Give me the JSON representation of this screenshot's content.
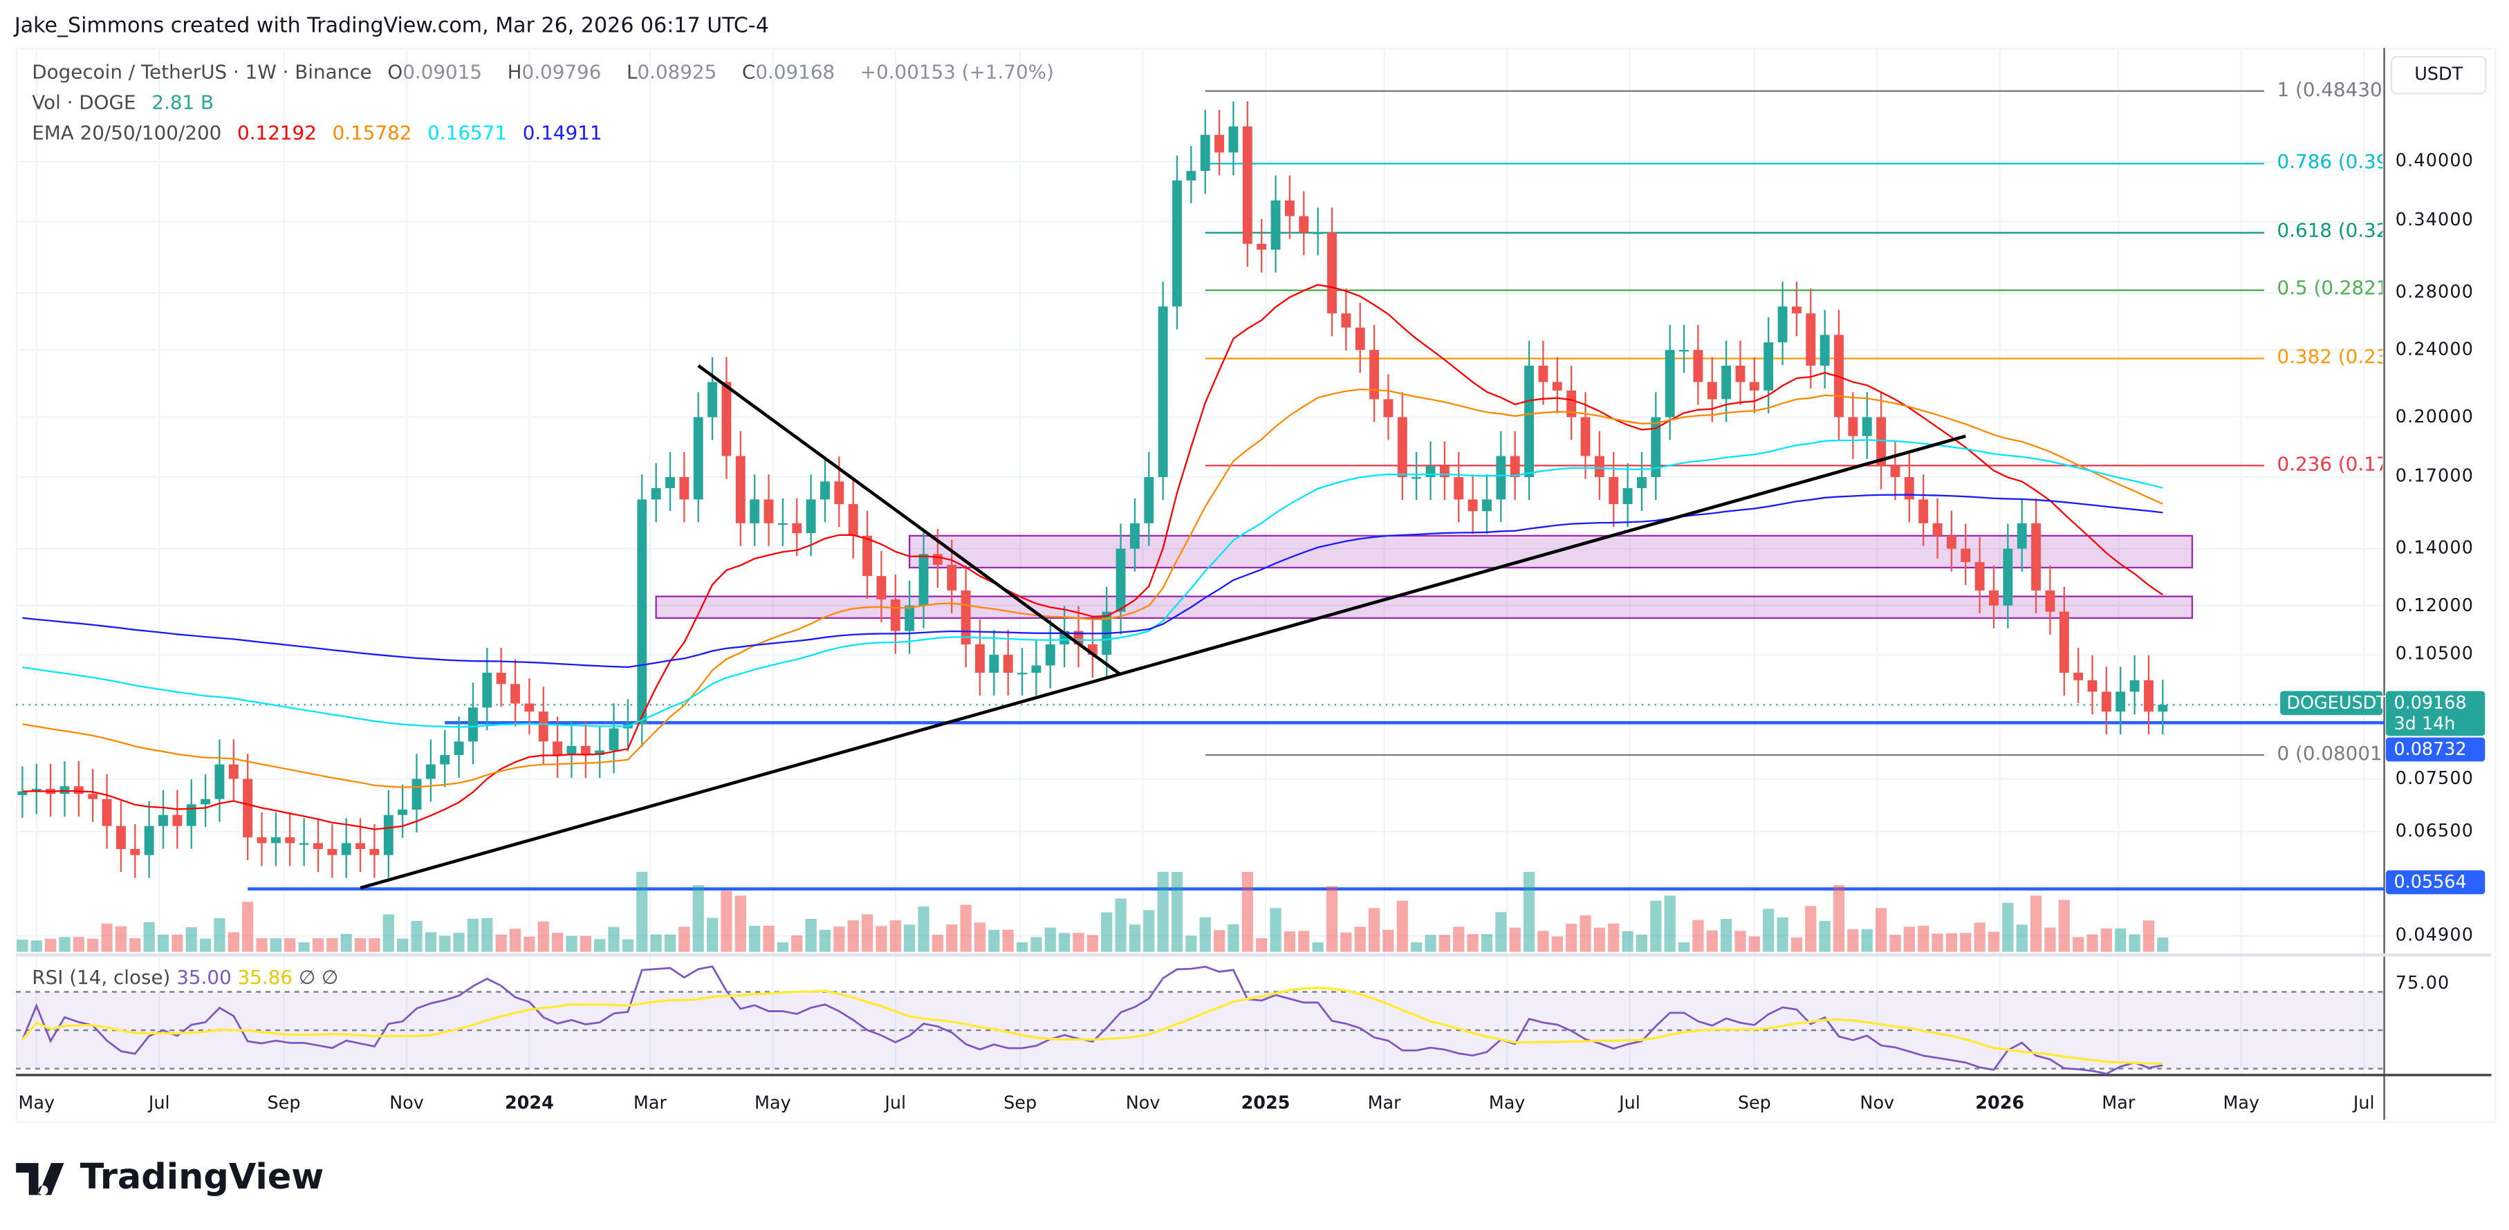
{
  "credit": "Jake_Simmons created with TradingView.com, Mar 26, 2026 06:17 UTC-4",
  "legend": {
    "symbol": "Dogecoin / TetherUS · 1W · Binance",
    "o_label": "O",
    "o": "0.09015",
    "h_label": "H",
    "h": "0.09796",
    "l_label": "L",
    "l": "0.08925",
    "c_label": "C",
    "c": "0.09168",
    "change": "+0.00153 (+1.70%)",
    "vol_label": "Vol · DOGE",
    "vol": "2.81 B",
    "ema_label": "EMA 20/50/100/200",
    "ema_values": [
      "0.12192",
      "0.15782",
      "0.16571",
      "0.14911"
    ],
    "rsi_label": "RSI (14, close)",
    "rsi": "35.00",
    "rsi_ma": "35.86",
    "rsi_n1": "∅",
    "rsi_n2": "∅"
  },
  "currency": "USDT",
  "colors": {
    "up": "#26a69a",
    "down": "#ef5350",
    "ema": [
      "#ff0000",
      "#ff8a00",
      "#00e5ff",
      "#1a1aff"
    ],
    "rsi": "#7e57c2",
    "rsi_ma": "#ffeb3b",
    "hline": "#2962ff",
    "zone": "#9c27b0"
  },
  "price_ticks": [
    "0.40000",
    "0.34000",
    "0.28000",
    "0.24000",
    "0.20000",
    "0.17000",
    "0.14000",
    "0.12000",
    "0.10500",
    "0.07500",
    "0.06500",
    "0.04900"
  ],
  "rsi_tick": "75.00",
  "tags": {
    "symbol": "DOGEUSDT",
    "last": "0.09168",
    "countdown": "3d 14h",
    "level1": "0.08732",
    "level2": "0.05564"
  },
  "time_labels": [
    {
      "t": "May",
      "d": "2023-05-01"
    },
    {
      "t": "Jul",
      "d": "2023-07-01"
    },
    {
      "t": "Sep",
      "d": "2023-09-01"
    },
    {
      "t": "Nov",
      "d": "2023-11-01"
    },
    {
      "t": "2024",
      "d": "2024-01-01",
      "bold": true
    },
    {
      "t": "Mar",
      "d": "2024-03-01"
    },
    {
      "t": "May",
      "d": "2024-05-01"
    },
    {
      "t": "Jul",
      "d": "2024-07-01"
    },
    {
      "t": "Sep",
      "d": "2024-09-01"
    },
    {
      "t": "Nov",
      "d": "2024-11-01"
    },
    {
      "t": "2025",
      "d": "2025-01-01",
      "bold": true
    },
    {
      "t": "Mar",
      "d": "2025-03-01"
    },
    {
      "t": "May",
      "d": "2025-05-01"
    },
    {
      "t": "Jul",
      "d": "2025-07-01"
    },
    {
      "t": "Sep",
      "d": "2025-09-01"
    },
    {
      "t": "Nov",
      "d": "2025-11-01"
    },
    {
      "t": "2026",
      "d": "2026-01-01",
      "bold": true
    },
    {
      "t": "Mar",
      "d": "2026-03-01"
    },
    {
      "t": "May",
      "d": "2026-05-01"
    },
    {
      "t": "Jul",
      "d": "2026-07-01"
    }
  ],
  "chart_data": {
    "type": "candlestick",
    "scale": "log",
    "interval": "1W",
    "first_week": "2023-04-24",
    "closes": [
      0.0725,
      0.073,
      0.072,
      0.0735,
      0.072,
      0.071,
      0.066,
      0.062,
      0.061,
      0.066,
      0.068,
      0.066,
      0.07,
      0.071,
      0.078,
      0.075,
      0.064,
      0.063,
      0.064,
      0.063,
      0.063,
      0.062,
      0.061,
      0.063,
      0.062,
      0.061,
      0.068,
      0.069,
      0.075,
      0.078,
      0.08,
      0.083,
      0.091,
      0.1,
      0.097,
      0.092,
      0.09,
      0.083,
      0.08,
      0.082,
      0.08,
      0.081,
      0.086,
      0.087,
      0.16,
      0.165,
      0.17,
      0.16,
      0.2,
      0.22,
      0.18,
      0.15,
      0.16,
      0.15,
      0.15,
      0.146,
      0.16,
      0.168,
      0.158,
      0.145,
      0.13,
      0.122,
      0.112,
      0.12,
      0.138,
      0.134,
      0.125,
      0.108,
      0.1,
      0.105,
      0.1,
      0.1,
      0.102,
      0.108,
      0.112,
      0.108,
      0.105,
      0.118,
      0.14,
      0.15,
      0.17,
      0.27,
      0.38,
      0.39,
      0.43,
      0.41,
      0.44,
      0.32,
      0.315,
      0.36,
      0.345,
      0.33,
      0.33,
      0.265,
      0.255,
      0.24,
      0.21,
      0.2,
      0.17,
      0.17,
      0.175,
      0.17,
      0.16,
      0.155,
      0.16,
      0.18,
      0.17,
      0.23,
      0.22,
      0.215,
      0.2,
      0.18,
      0.17,
      0.158,
      0.165,
      0.17,
      0.2,
      0.24,
      0.24,
      0.22,
      0.21,
      0.23,
      0.22,
      0.215,
      0.245,
      0.27,
      0.265,
      0.23,
      0.25,
      0.2,
      0.19,
      0.2,
      0.175,
      0.17,
      0.16,
      0.15,
      0.145,
      0.14,
      0.135,
      0.125,
      0.12,
      0.14,
      0.15,
      0.125,
      0.118,
      0.1,
      0.098,
      0.095,
      0.09,
      0.095,
      0.098,
      0.09,
      0.09168
    ],
    "fib_levels": [
      {
        "level": 1,
        "price": 0.4843,
        "text": "1 (0.48430)",
        "color": "#787b86"
      },
      {
        "level": 0.786,
        "price": 0.3978,
        "text": "0.786 (0.39",
        "color": "#00bcd4"
      },
      {
        "level": 0.618,
        "price": 0.3298,
        "text": "0.618 (0.32",
        "color": "#089981"
      },
      {
        "level": 0.5,
        "price": 0.28216,
        "text": "0.5 (0.2821",
        "color": "#4caf50"
      },
      {
        "level": 0.382,
        "price": 0.2345,
        "text": "0.382 (0.23",
        "color": "#ff9800"
      },
      {
        "level": 0.236,
        "price": 0.1754,
        "text": "0.236 (0.17",
        "color": "#f23645"
      },
      {
        "level": 0,
        "price": 0.08001,
        "text": "0 (0.08001)",
        "color": "#787b86"
      }
    ],
    "fib_from": "2024-12-02",
    "zones": [
      {
        "from": "2024-07-08",
        "low": 0.133,
        "high": 0.145
      },
      {
        "from": "2024-03-04",
        "low": 0.116,
        "high": 0.123
      }
    ],
    "hlines": [
      {
        "from": "2023-11-20",
        "price": 0.08732
      },
      {
        "from": "2023-08-14",
        "price": 0.05564
      }
    ],
    "trendlines": [
      {
        "x1": "2023-10-09",
        "y1": 0.0558,
        "x2": "2025-12-15",
        "y2": 0.19
      },
      {
        "x1": "2024-03-25",
        "y1": 0.23,
        "x2": "2024-10-21",
        "y2": 0.0995
      }
    ],
    "rsi_levels": [
      70,
      50,
      30
    ]
  }
}
